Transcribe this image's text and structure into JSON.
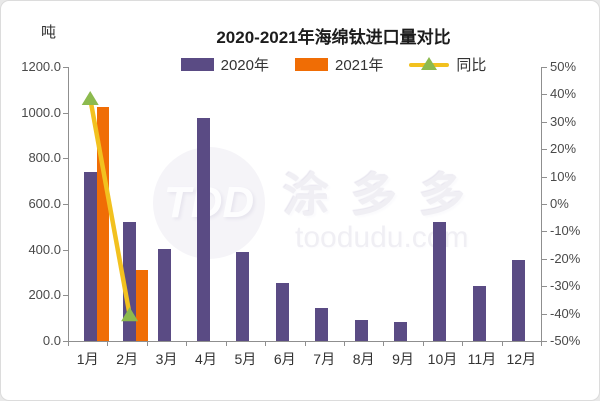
{
  "axis_unit": "吨",
  "chart_data": {
    "type": "combo-bar-line",
    "title": "2020-2021年海绵钛进口量对比",
    "categories": [
      "1月",
      "2月",
      "3月",
      "4月",
      "5月",
      "6月",
      "7月",
      "8月",
      "9月",
      "10月",
      "11月",
      "12月"
    ],
    "series": [
      {
        "name": "2020年",
        "type": "bar",
        "axis": "left",
        "color": "#5a4b84",
        "values": [
          740,
          520,
          405,
          975,
          390,
          255,
          145,
          90,
          85,
          520,
          240,
          355
        ]
      },
      {
        "name": "2021年",
        "type": "bar",
        "axis": "left",
        "color": "#f06d05",
        "values": [
          1025,
          310,
          null,
          null,
          null,
          null,
          null,
          null,
          null,
          null,
          null,
          null
        ]
      },
      {
        "name": "同比",
        "type": "line",
        "axis": "right",
        "color": "#f2c11f",
        "marker": "triangle",
        "marker_color": "#8cba4e",
        "values": [
          38.5,
          -40.4,
          null,
          null,
          null,
          null,
          null,
          null,
          null,
          null,
          null,
          null
        ]
      }
    ],
    "left_axis": {
      "unit": "吨",
      "min": 0,
      "max": 1200,
      "tick_labels": [
        "1200.0",
        "1000.0",
        "800.0",
        "600.0",
        "400.0",
        "200.0",
        "0.0"
      ]
    },
    "right_axis": {
      "min": -50,
      "max": 50,
      "tick_labels": [
        "50%",
        "40%",
        "30%",
        "20%",
        "10%",
        "0%",
        "-10%",
        "-20%",
        "-30%",
        "-40%",
        "-50%"
      ]
    },
    "legend_position": "top",
    "grid": false
  },
  "watermark": {
    "logo_text": "TDD",
    "brand_text": "涂多多",
    "domain_text": "toodudu.com"
  }
}
